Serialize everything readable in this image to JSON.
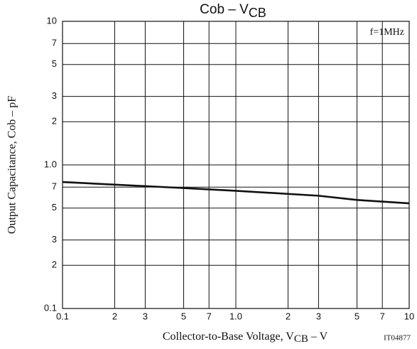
{
  "chart_data": {
    "type": "line",
    "title": [
      "Cob – V",
      "CB"
    ],
    "x_label": [
      "Collector-to-Base Voltage, V",
      "CB",
      " – V"
    ],
    "y_label": "Output Capacitance, Cob – pF",
    "annotation": "f=1MHz",
    "figure_code": "IT04877",
    "x_scale": "log",
    "y_scale": "log",
    "grid": true,
    "xlim": [
      0.1,
      10
    ],
    "ylim": [
      0.1,
      10
    ],
    "xticks": [
      0.1,
      {
        "value": 0.2,
        "label": "2"
      },
      {
        "value": 0.3,
        "label": "3"
      },
      {
        "value": 0.5,
        "label": "5"
      },
      {
        "value": 0.7,
        "label": "7"
      },
      {
        "value": 1,
        "label": "1.0"
      },
      2,
      3,
      5,
      7,
      10
    ],
    "yticks": [
      10,
      7,
      5,
      3,
      2,
      {
        "value": 1,
        "label": "1.0"
      },
      {
        "value": 0.7,
        "label": "7"
      },
      {
        "value": 0.5,
        "label": "5"
      },
      {
        "value": 0.3,
        "label": "3"
      },
      {
        "value": 0.2,
        "label": "2"
      },
      0.1
    ],
    "series": [
      {
        "color": "#111111",
        "x": [
          0.1,
          0.5,
          1,
          3,
          5,
          10
        ],
        "values": [
          0.76,
          0.69,
          0.66,
          0.61,
          0.57,
          0.54
        ]
      }
    ]
  }
}
